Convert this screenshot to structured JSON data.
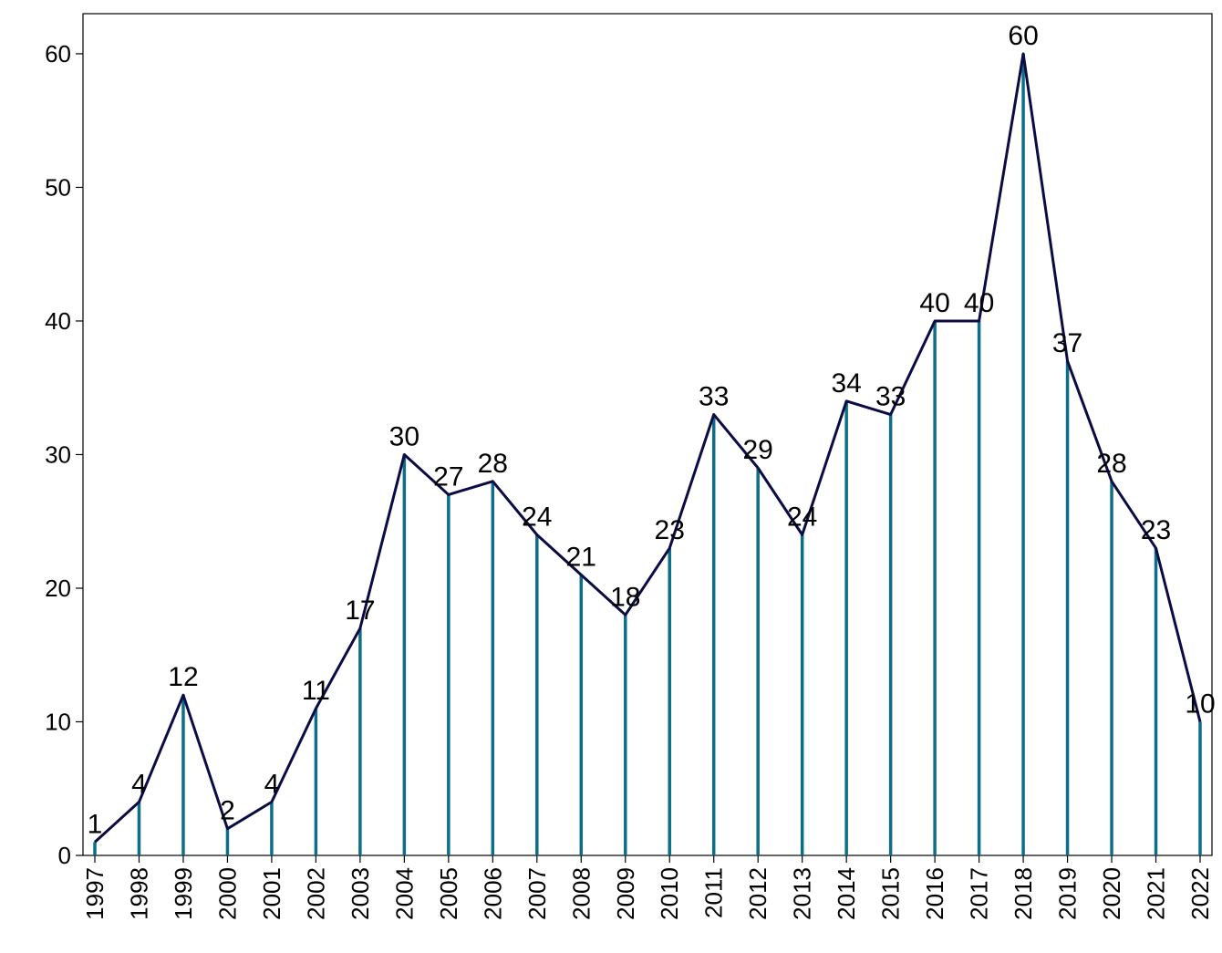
{
  "chart_data": {
    "type": "line",
    "title": "",
    "xlabel": "",
    "ylabel": "",
    "categories": [
      "1997",
      "1998",
      "1999",
      "2000",
      "2001",
      "2002",
      "2003",
      "2004",
      "2005",
      "2006",
      "2007",
      "2008",
      "2009",
      "2010",
      "2011",
      "2012",
      "2013",
      "2014",
      "2015",
      "2016",
      "2017",
      "2018",
      "2019",
      "2020",
      "2021",
      "2022"
    ],
    "values": [
      1,
      4,
      12,
      2,
      4,
      11,
      17,
      30,
      27,
      28,
      24,
      21,
      18,
      23,
      33,
      29,
      24,
      34,
      33,
      40,
      40,
      60,
      37,
      28,
      23,
      10
    ],
    "ylim": [
      0,
      63
    ],
    "y_ticks": [
      0,
      10,
      20,
      30,
      40,
      50,
      60
    ],
    "grid": false,
    "legend": "none",
    "colors": {
      "line": "#0b0b45",
      "stem": "#0e6e8a",
      "axes": "#000000",
      "background": "#ffffff"
    },
    "stems": true,
    "data_labels": true,
    "x_tick_rotation": "vertical"
  }
}
